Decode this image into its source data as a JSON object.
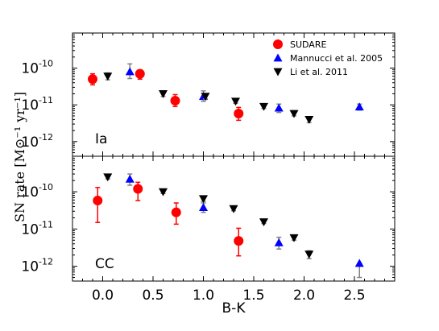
{
  "chart_data": {
    "type": "scatter",
    "y_axis_label": "SN rate  [M⊙⁻¹ yr⁻¹]",
    "xlabel": "B-K",
    "xlim": [
      -0.3,
      2.9
    ],
    "x_ticks": [
      0.0,
      0.5,
      1.0,
      1.5,
      2.0,
      2.5
    ],
    "x_tick_labels": [
      "0.0",
      "0.5",
      "1.0",
      "1.5",
      "2.0",
      "2.5"
    ],
    "yscale": "log",
    "legend_location": "upper right of top panel",
    "grid": false,
    "panels": [
      {
        "label": "Ia",
        "ylim": [
          4e-13,
          9e-10
        ],
        "y_ticks": [
          1e-12,
          1e-11,
          1e-10
        ],
        "y_tick_exponents": [
          "-12",
          "-11",
          "-10"
        ],
        "series": [
          {
            "name": "SUDARE",
            "marker": "circle",
            "color": "#ff0000",
            "points": [
              {
                "x": -0.1,
                "y": 5e-11,
                "ylo": 3.5e-11,
                "yhi": 7e-11
              },
              {
                "x": 0.37,
                "y": 7e-11,
                "ylo": 5e-11,
                "yhi": 9e-11
              },
              {
                "x": 0.72,
                "y": 1.3e-11,
                "ylo": 9e-12,
                "yhi": 1.9e-11
              },
              {
                "x": 1.35,
                "y": 5.8e-12,
                "ylo": 3.8e-12,
                "yhi": 8.5e-12
              }
            ]
          },
          {
            "name": "Mannucci et al. 2005",
            "marker": "triangle-up",
            "color": "#0000ff",
            "points": [
              {
                "x": 0.27,
                "y": 8e-11,
                "ylo": 5.2e-11,
                "yhi": 1.3e-10
              },
              {
                "x": 1.0,
                "y": 1.7e-11,
                "ylo": 1.25e-11,
                "yhi": 2.4e-11
              },
              {
                "x": 1.75,
                "y": 8.2e-12,
                "ylo": 6.2e-12,
                "yhi": 1.05e-11
              },
              {
                "x": 2.55,
                "y": 8.8e-12,
                "ylo": 7.2e-12,
                "yhi": 1.05e-11
              }
            ]
          },
          {
            "name": "Li et al. 2011",
            "marker": "triangle-down",
            "color": "#000000",
            "points": [
              {
                "x": 0.05,
                "y": 6e-11,
                "ylo": 4.8e-11,
                "yhi": 7.4e-11
              },
              {
                "x": 0.6,
                "y": 2e-11,
                "ylo": 1.7e-11,
                "yhi": 2.4e-11
              },
              {
                "x": 1.02,
                "y": 1.7e-11,
                "ylo": 1.45e-11,
                "yhi": 2e-11
              },
              {
                "x": 1.32,
                "y": 1.25e-11,
                "ylo": 1.1e-11,
                "yhi": 1.4e-11
              },
              {
                "x": 1.6,
                "y": 9e-12,
                "ylo": 8e-12,
                "yhi": 1e-11
              },
              {
                "x": 1.9,
                "y": 5.8e-12,
                "ylo": 5e-12,
                "yhi": 6.6e-12
              },
              {
                "x": 2.05,
                "y": 4e-12,
                "ylo": 3.3e-12,
                "yhi": 4.7e-12
              }
            ]
          }
        ]
      },
      {
        "label": "CC",
        "ylim": [
          4e-13,
          9e-10
        ],
        "y_ticks": [
          1e-12,
          1e-11,
          1e-10
        ],
        "y_tick_exponents": [
          "-12",
          "-11",
          "-10"
        ],
        "series": [
          {
            "name": "SUDARE",
            "marker": "circle",
            "color": "#ff0000",
            "points": [
              {
                "x": -0.05,
                "y": 5.8e-11,
                "ylo": 1.5e-11,
                "yhi": 1.3e-10
              },
              {
                "x": 0.35,
                "y": 1.2e-10,
                "ylo": 5.8e-11,
                "yhi": 1.8e-10
              },
              {
                "x": 0.73,
                "y": 2.8e-11,
                "ylo": 1.35e-11,
                "yhi": 5e-11
              },
              {
                "x": 1.35,
                "y": 4.8e-12,
                "ylo": 1.9e-12,
                "yhi": 1.05e-11
              }
            ]
          },
          {
            "name": "Mannucci et al. 2005",
            "marker": "triangle-up",
            "color": "#0000ff",
            "points": [
              {
                "x": 0.27,
                "y": 2.2e-10,
                "ylo": 1.5e-10,
                "yhi": 3e-10
              },
              {
                "x": 1.0,
                "y": 3.8e-11,
                "ylo": 2.8e-11,
                "yhi": 5e-11
              },
              {
                "x": 1.75,
                "y": 4.3e-12,
                "ylo": 2.9e-12,
                "yhi": 6e-12
              },
              {
                "x": 2.55,
                "y": 1.2e-12,
                "ylo": 5e-13,
                "yhi": 1.2e-12
              }
            ]
          },
          {
            "name": "Li et al. 2011",
            "marker": "triangle-down",
            "color": "#000000",
            "points": [
              {
                "x": 0.05,
                "y": 2.5e-10,
                "ylo": 2.2e-10,
                "yhi": 2.8e-10
              },
              {
                "x": 0.6,
                "y": 1e-10,
                "ylo": 9e-11,
                "yhi": 1.12e-10
              },
              {
                "x": 1.0,
                "y": 6.5e-11,
                "ylo": 5.5e-11,
                "yhi": 7.6e-11
              },
              {
                "x": 1.3,
                "y": 3.5e-11,
                "ylo": 3.1e-11,
                "yhi": 3.9e-11
              },
              {
                "x": 1.6,
                "y": 1.55e-11,
                "ylo": 1.4e-11,
                "yhi": 1.7e-11
              },
              {
                "x": 1.9,
                "y": 5.8e-12,
                "ylo": 5e-12,
                "yhi": 6.6e-12
              },
              {
                "x": 2.05,
                "y": 2.1e-12,
                "ylo": 1.6e-12,
                "yhi": 2.6e-12
              }
            ]
          }
        ]
      }
    ],
    "legend": [
      {
        "name": "SUDARE",
        "marker": "circle",
        "color": "#ff0000"
      },
      {
        "name": "Mannucci et al. 2005",
        "marker": "triangle-up",
        "color": "#0000ff"
      },
      {
        "name": "Li et al. 2011",
        "marker": "triangle-down",
        "color": "#000000"
      }
    ]
  }
}
